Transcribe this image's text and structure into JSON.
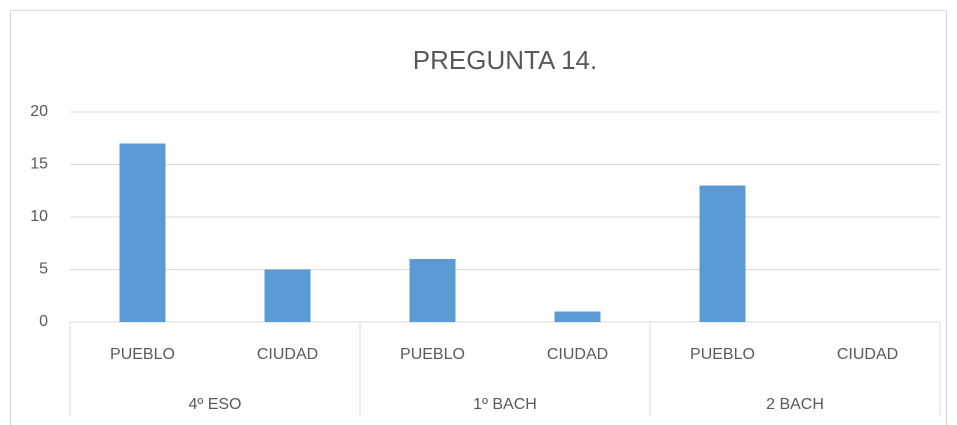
{
  "chart_data": {
    "type": "bar",
    "title": "PREGUNTA 14.",
    "categories": [
      "PUEBLO",
      "CIUDAD",
      "PUEBLO",
      "CIUDAD",
      "PUEBLO",
      "CIUDAD"
    ],
    "groups": [
      "4º ESO",
      "1º BACH",
      "2 BACH"
    ],
    "values": [
      17,
      5,
      6,
      1,
      13,
      0
    ],
    "color": "#5b9bd5",
    "ylim": [
      0,
      20
    ],
    "yticks": [
      0,
      5,
      10,
      15,
      20
    ],
    "grid": true
  }
}
